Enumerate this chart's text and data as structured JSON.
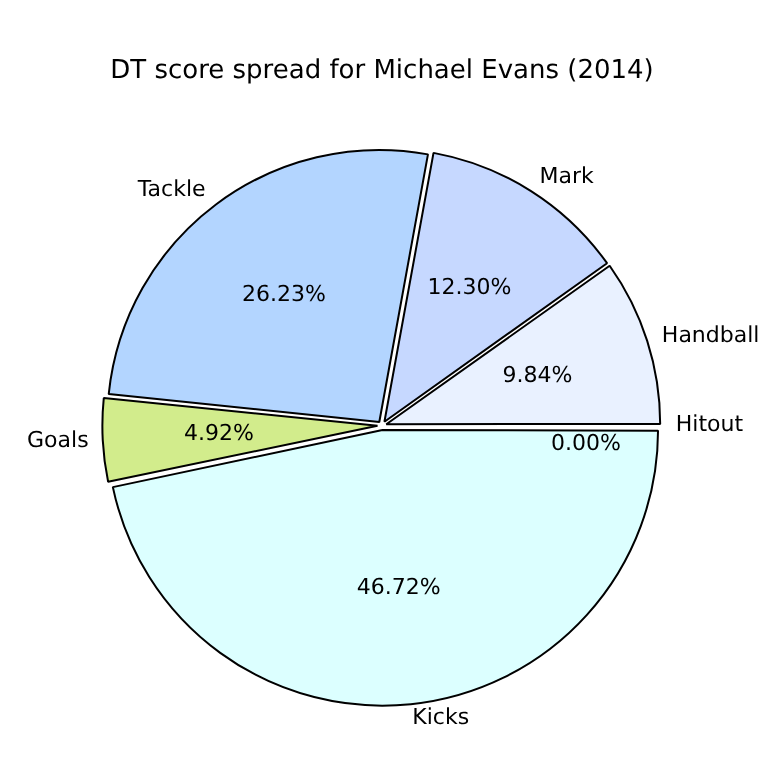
{
  "chart_data": {
    "type": "pie",
    "title": "DT score spread for Michael Evans (2014)",
    "categories": [
      "Kicks",
      "Goals",
      "Tackle",
      "Mark",
      "Handball",
      "Hitout"
    ],
    "values": [
      46.72,
      4.92,
      26.23,
      12.3,
      9.84,
      0
    ],
    "value_labels": [
      "46.72%",
      "4.92%",
      "26.23%",
      "12.30%",
      "9.84%",
      "0.00%"
    ],
    "colors": [
      "#dcffff",
      "#d2ec8c",
      "#b3d5ff",
      "#c6d8ff",
      "#e9f1ff",
      "#ffffff"
    ],
    "legend": false
  }
}
